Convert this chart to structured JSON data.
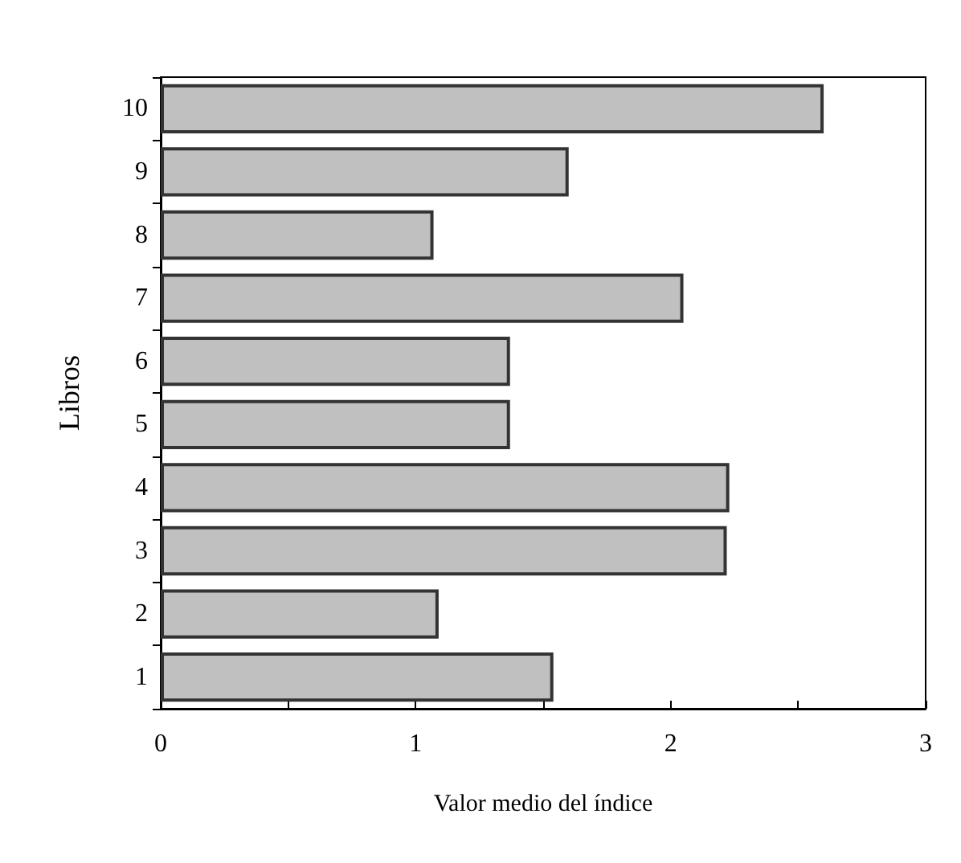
{
  "chart_data": {
    "type": "bar",
    "orientation": "horizontal",
    "xlabel": "Valor medio del índice",
    "ylabel": "Libros",
    "categories": [
      "10",
      "9",
      "8",
      "7",
      "6",
      "5",
      "4",
      "3",
      "2",
      "1"
    ],
    "values": [
      2.6,
      1.6,
      1.07,
      2.05,
      1.37,
      1.37,
      2.23,
      2.22,
      1.09,
      1.54
    ],
    "color": "#c0c0c0",
    "xlim": [
      0,
      3
    ],
    "xticks": [
      0,
      {
        "value": 0.5,
        "label": null
      },
      1,
      {
        "value": 1.5,
        "label": null
      },
      2,
      {
        "value": 2.5,
        "label": null
      },
      3
    ],
    "grid": false
  }
}
